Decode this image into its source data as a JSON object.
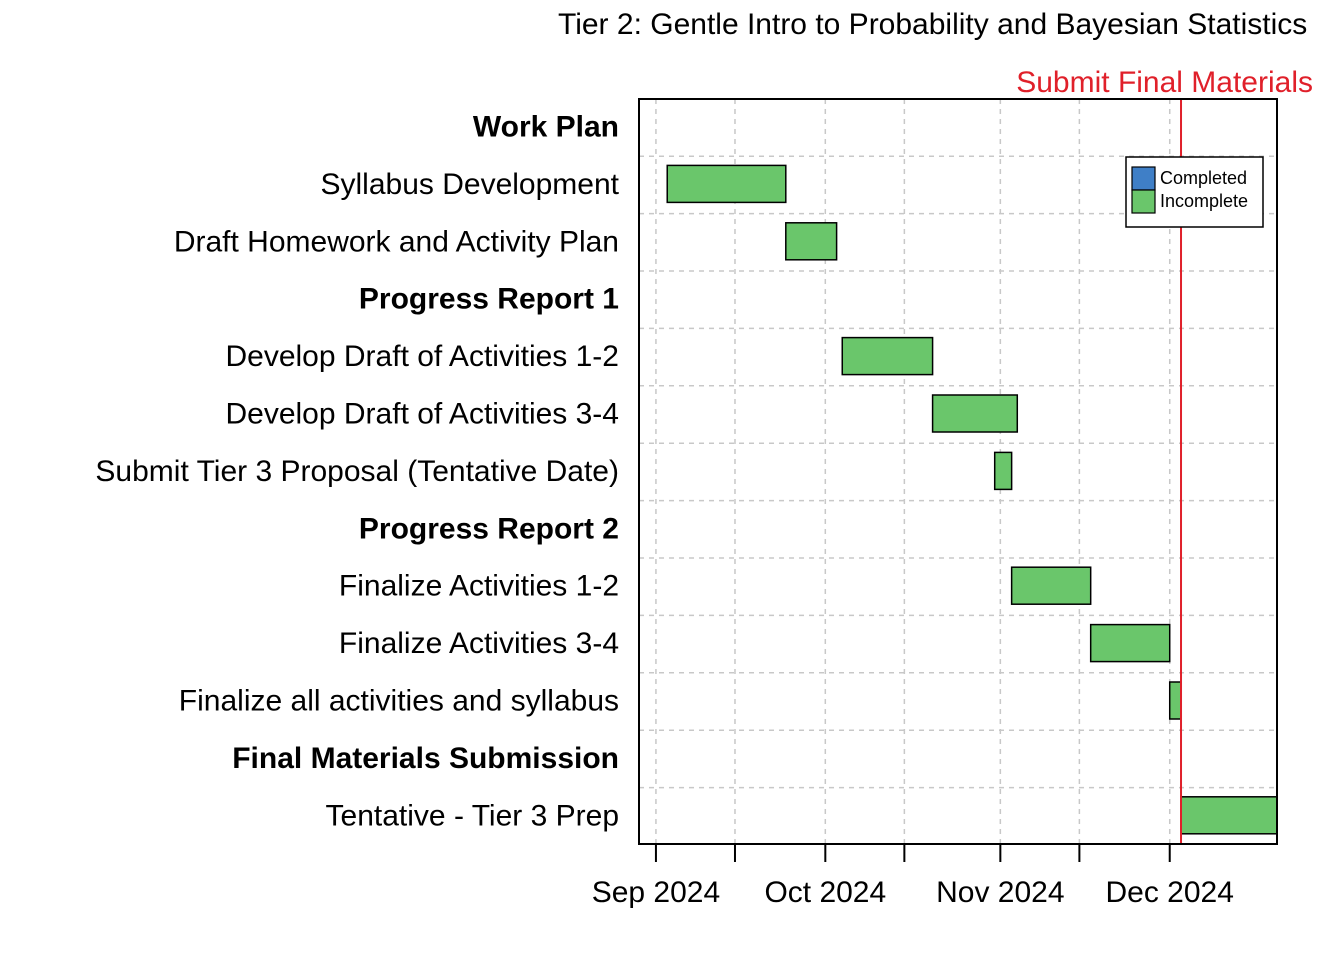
{
  "chart_data": {
    "type": "gantt",
    "title": "Tier 2: Gentle Intro to Probability and Bayesian Statistics",
    "xlabel": "",
    "ylabel": "",
    "x_axis": {
      "type": "date",
      "range": [
        "2024-08-29",
        "2024-12-20"
      ],
      "tick_labels": [
        {
          "date": "2024-09-01",
          "label": "Sep 2024"
        },
        {
          "date": "2024-10-01",
          "label": "Oct 2024"
        },
        {
          "date": "2024-11-01",
          "label": "Nov 2024"
        },
        {
          "date": "2024-12-01",
          "label": "Dec 2024"
        }
      ],
      "minor_ticks": [
        "2024-09-15",
        "2024-10-15",
        "2024-11-15"
      ]
    },
    "grid": true,
    "legend": {
      "position": "top-right",
      "entries": [
        {
          "label": "Completed",
          "color": "#3F7FC7"
        },
        {
          "label": "Incomplete",
          "color": "#6AC66B"
        }
      ]
    },
    "rows": [
      {
        "label": "Work Plan",
        "heading": true
      },
      {
        "label": "Syllabus Development",
        "start": "2024-09-03",
        "end": "2024-09-24",
        "status": "Incomplete"
      },
      {
        "label": "Draft Homework and Activity Plan",
        "start": "2024-09-24",
        "end": "2024-10-03",
        "status": "Incomplete"
      },
      {
        "label": "Progress Report 1",
        "heading": true
      },
      {
        "label": "Develop Draft of Activities 1-2",
        "start": "2024-10-04",
        "end": "2024-10-20",
        "status": "Incomplete"
      },
      {
        "label": "Develop Draft of Activities 3-4",
        "start": "2024-10-20",
        "end": "2024-11-04",
        "status": "Incomplete"
      },
      {
        "label": "Submit Tier 3 Proposal (Tentative Date)",
        "start": "2024-10-31",
        "end": "2024-11-03",
        "status": "Incomplete"
      },
      {
        "label": "Progress Report 2",
        "heading": true
      },
      {
        "label": "Finalize Activities 1-2",
        "start": "2024-11-03",
        "end": "2024-11-17",
        "status": "Incomplete"
      },
      {
        "label": "Finalize Activities 3-4",
        "start": "2024-11-17",
        "end": "2024-12-01",
        "status": "Incomplete"
      },
      {
        "label": "Finalize all activities and syllabus",
        "start": "2024-12-01",
        "end": "2024-12-03",
        "status": "Incomplete"
      },
      {
        "label": "Final Materials Submission",
        "heading": true
      },
      {
        "label": "Tentative - Tier 3 Prep",
        "start": "2024-12-03",
        "end": "2024-12-20",
        "status": "Incomplete"
      }
    ],
    "annotations": [
      {
        "type": "vline",
        "date": "2024-12-03",
        "label": "Submit Final Materials",
        "color": "#E0202A"
      }
    ]
  }
}
